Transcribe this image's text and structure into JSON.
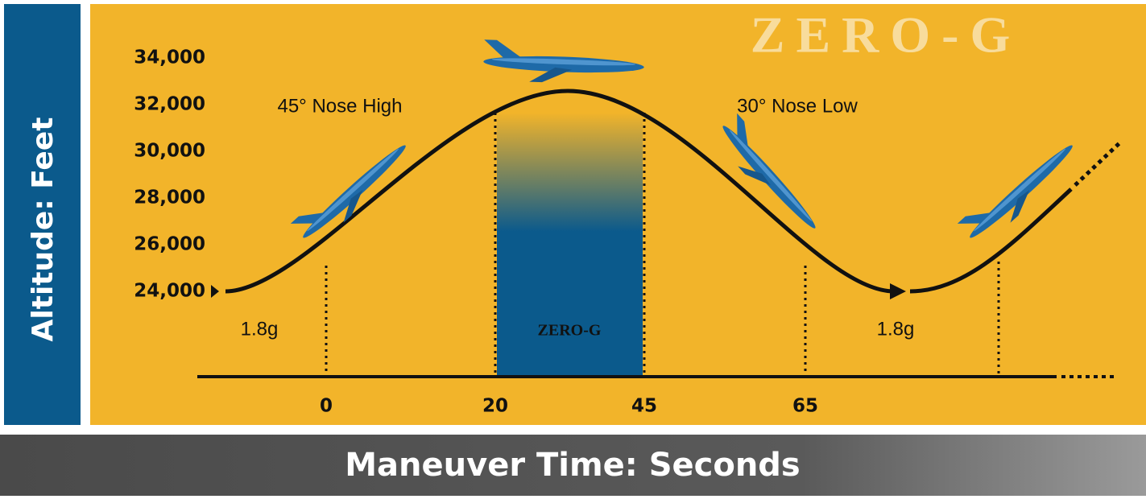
{
  "title": "ZERO-G",
  "y_axis_label": "Altitude: Feet",
  "x_axis_label": "Maneuver Time: Seconds",
  "y_ticks": [
    "34,000",
    "32,000",
    "30,000",
    "28,000",
    "26,000",
    "24,000"
  ],
  "x_ticks": [
    "0",
    "20",
    "45",
    "65"
  ],
  "annotations": {
    "nose_high": "45° Nose High",
    "nose_low": "30° Nose Low",
    "g_left": "1.8g",
    "g_right": "1.8g"
  },
  "zero_g_label": "ZERO-G"
}
